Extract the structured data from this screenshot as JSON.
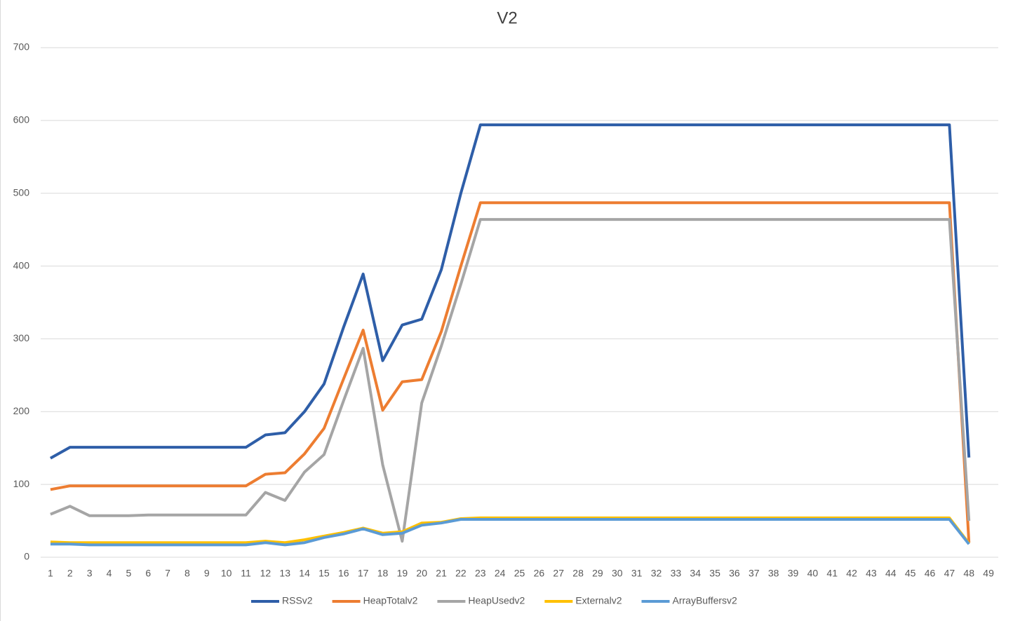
{
  "chart_data": {
    "type": "line",
    "title": "V2",
    "categories": [
      "1",
      "2",
      "3",
      "4",
      "5",
      "6",
      "7",
      "8",
      "9",
      "10",
      "11",
      "12",
      "13",
      "14",
      "15",
      "16",
      "17",
      "18",
      "19",
      "20",
      "21",
      "22",
      "23",
      "24",
      "25",
      "26",
      "27",
      "28",
      "29",
      "30",
      "31",
      "32",
      "33",
      "34",
      "35",
      "36",
      "37",
      "38",
      "39",
      "40",
      "41",
      "42",
      "43",
      "44",
      "45",
      "46",
      "47",
      "48",
      "49"
    ],
    "series": [
      {
        "name": "RSSv2",
        "color": "#2e5ea8",
        "values": [
          136,
          151,
          151,
          151,
          151,
          151,
          151,
          151,
          151,
          151,
          151,
          168,
          171,
          200,
          238,
          316,
          389,
          270,
          319,
          327,
          395,
          500,
          594,
          594,
          594,
          594,
          594,
          594,
          594,
          594,
          594,
          594,
          594,
          594,
          594,
          594,
          594,
          594,
          594,
          594,
          594,
          594,
          594,
          594,
          594,
          594,
          594,
          137,
          null
        ]
      },
      {
        "name": "HeapTotalv2",
        "color": "#ed7d31",
        "values": [
          93,
          98,
          98,
          98,
          98,
          98,
          98,
          98,
          98,
          98,
          98,
          114,
          116,
          142,
          177,
          245,
          312,
          202,
          241,
          244,
          310,
          400,
          487,
          487,
          487,
          487,
          487,
          487,
          487,
          487,
          487,
          487,
          487,
          487,
          487,
          487,
          487,
          487,
          487,
          487,
          487,
          487,
          487,
          487,
          487,
          487,
          487,
          20,
          null
        ]
      },
      {
        "name": "HeapUsedv2",
        "color": "#a5a5a5",
        "values": [
          59,
          70,
          57,
          57,
          57,
          58,
          58,
          58,
          58,
          58,
          58,
          89,
          78,
          117,
          141,
          215,
          287,
          127,
          22,
          212,
          290,
          375,
          464,
          464,
          464,
          464,
          464,
          464,
          464,
          464,
          464,
          464,
          464,
          464,
          464,
          464,
          464,
          464,
          464,
          464,
          464,
          464,
          464,
          464,
          464,
          464,
          464,
          50,
          null
        ]
      },
      {
        "name": "Externalv2",
        "color": "#ffc000",
        "values": [
          21,
          20,
          20,
          20,
          20,
          20,
          20,
          20,
          20,
          20,
          20,
          22,
          20,
          24,
          29,
          34,
          40,
          33,
          35,
          47,
          48,
          53,
          54,
          54,
          54,
          54,
          54,
          54,
          54,
          54,
          54,
          54,
          54,
          54,
          54,
          54,
          54,
          54,
          54,
          54,
          54,
          54,
          54,
          54,
          54,
          54,
          54,
          19,
          null
        ]
      },
      {
        "name": "ArrayBuffersv2",
        "color": "#5b9bd5",
        "values": [
          18,
          18,
          17,
          17,
          17,
          17,
          17,
          17,
          17,
          17,
          17,
          20,
          17,
          20,
          27,
          32,
          39,
          31,
          33,
          44,
          47,
          52,
          52,
          52,
          52,
          52,
          52,
          52,
          52,
          52,
          52,
          52,
          52,
          52,
          52,
          52,
          52,
          52,
          52,
          52,
          52,
          52,
          52,
          52,
          52,
          52,
          52,
          18,
          null
        ]
      }
    ],
    "ylim": [
      0,
      700
    ],
    "yticks": [
      0,
      100,
      200,
      300,
      400,
      500,
      600,
      700
    ],
    "grid": true,
    "legend": "bottom"
  }
}
